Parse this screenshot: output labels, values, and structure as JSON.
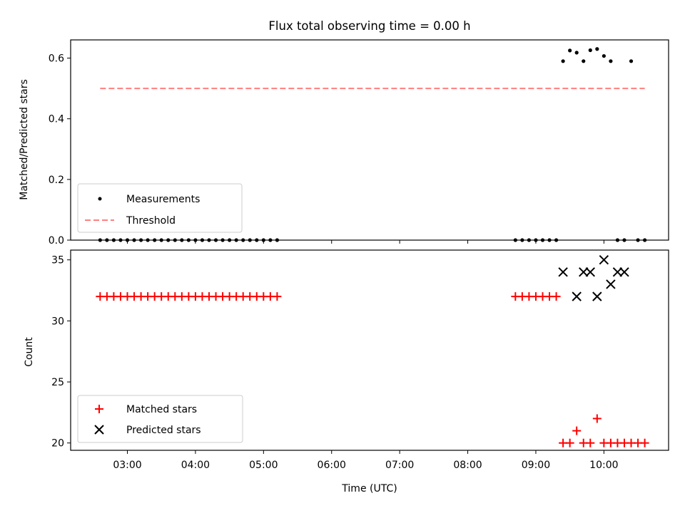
{
  "chart_data": [
    {
      "type": "scatter",
      "title": "Flux total observing time = 0.00 h",
      "xlabel": "",
      "ylabel": "Matched/Predicted stars",
      "xlim": [
        "02:10",
        "10:57"
      ],
      "ylim": [
        0,
        0.66
      ],
      "yticks": [
        0,
        0.2,
        0.4,
        0.6
      ],
      "ytick_labels": [
        "0.0",
        "0.2",
        "0.4",
        "0.6"
      ],
      "legend_position": "lower-left",
      "series": [
        {
          "name": "Measurements",
          "kind": "points",
          "color": "#000000",
          "x": [
            "02:36",
            "02:42",
            "02:48",
            "02:54",
            "03:00",
            "03:06",
            "03:12",
            "03:18",
            "03:24",
            "03:30",
            "03:36",
            "03:42",
            "03:48",
            "03:54",
            "04:00",
            "04:06",
            "04:12",
            "04:18",
            "04:24",
            "04:30",
            "04:36",
            "04:42",
            "04:48",
            "04:54",
            "05:00",
            "05:06",
            "05:12",
            "08:42",
            "08:48",
            "08:54",
            "09:00",
            "09:06",
            "09:12",
            "09:18",
            "09:24",
            "09:30",
            "09:36",
            "09:42",
            "09:48",
            "09:54",
            "10:00",
            "10:06",
            "10:12",
            "10:18",
            "10:24",
            "10:30",
            "10:36"
          ],
          "y": [
            0,
            0,
            0,
            0,
            0,
            0,
            0,
            0,
            0,
            0,
            0,
            0,
            0,
            0,
            0,
            0,
            0,
            0,
            0,
            0,
            0,
            0,
            0,
            0,
            0,
            0,
            0,
            0,
            0,
            0,
            0,
            0,
            0,
            0,
            0.59,
            0.625,
            0.618,
            0.59,
            0.626,
            0.63,
            0.607,
            0.59,
            0,
            0,
            0.59,
            0,
            0
          ]
        },
        {
          "name": "Threshold",
          "kind": "dashed-line",
          "color": "#ff7f7f",
          "x": [
            "02:36",
            "10:36"
          ],
          "y": [
            0.5,
            0.5
          ]
        }
      ]
    },
    {
      "type": "scatter",
      "title": "",
      "xlabel": "Time (UTC)",
      "ylabel": "Count",
      "xlim": [
        "02:10",
        "10:57"
      ],
      "ylim": [
        19.4,
        35.8
      ],
      "yticks": [
        20,
        25,
        30,
        35
      ],
      "ytick_labels": [
        "20",
        "25",
        "30",
        "35"
      ],
      "xticks": [
        "03:00",
        "04:00",
        "05:00",
        "06:00",
        "07:00",
        "08:00",
        "09:00",
        "10:00"
      ],
      "legend_position": "lower-left",
      "series": [
        {
          "name": "Matched stars",
          "kind": "plus",
          "color": "#ff0000",
          "x": [
            "02:36",
            "02:42",
            "02:48",
            "02:54",
            "03:00",
            "03:06",
            "03:12",
            "03:18",
            "03:24",
            "03:30",
            "03:36",
            "03:42",
            "03:48",
            "03:54",
            "04:00",
            "04:06",
            "04:12",
            "04:18",
            "04:24",
            "04:30",
            "04:36",
            "04:42",
            "04:48",
            "04:54",
            "05:00",
            "05:06",
            "05:12",
            "08:42",
            "08:48",
            "08:54",
            "09:00",
            "09:06",
            "09:12",
            "09:18",
            "09:24",
            "09:30",
            "09:36",
            "09:42",
            "09:48",
            "09:54",
            "10:00",
            "10:06",
            "10:12",
            "10:18",
            "10:24",
            "10:30",
            "10:36"
          ],
          "y": [
            32,
            32,
            32,
            32,
            32,
            32,
            32,
            32,
            32,
            32,
            32,
            32,
            32,
            32,
            32,
            32,
            32,
            32,
            32,
            32,
            32,
            32,
            32,
            32,
            32,
            32,
            32,
            32,
            32,
            32,
            32,
            32,
            32,
            32,
            20,
            20,
            21,
            20,
            20,
            22,
            20,
            20,
            20,
            20,
            20,
            20,
            20
          ]
        },
        {
          "name": "Predicted stars",
          "kind": "x",
          "color": "#000000",
          "x": [
            "09:24",
            "09:36",
            "09:42",
            "09:48",
            "09:54",
            "10:00",
            "10:06",
            "10:12",
            "10:18"
          ],
          "y": [
            34,
            32,
            34,
            34,
            32,
            35,
            33,
            34,
            34
          ]
        }
      ]
    }
  ]
}
